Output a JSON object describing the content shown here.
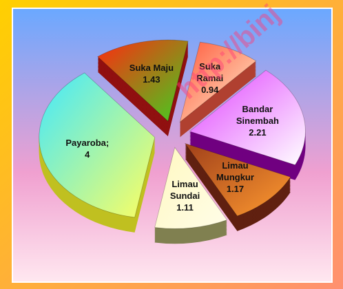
{
  "chart_data": {
    "type": "pie3d",
    "categories": [
      "Suka Ramai",
      "Bandar Sinembah",
      "Limau Mungkur",
      "Limau Sundai",
      "Payaroba;",
      "Suka Maju"
    ],
    "values": [
      0.94,
      2.21,
      1.17,
      1.11,
      4,
      1.43
    ],
    "colors": [
      "#ff5a3c",
      "#e040ff",
      "#a0401a",
      "#fff8c0",
      "#40e8ff",
      "#ff2a10"
    ],
    "colors_end": [
      "#fff0d0",
      "#ffffff",
      "#ff9a30",
      "#fffde8",
      "#ffff60",
      "#40d020"
    ],
    "side_colors": [
      "#b04030",
      "#700080",
      "#602010",
      "#808050",
      "#c0c020",
      "#901010"
    ],
    "watermark": "http://binj"
  }
}
